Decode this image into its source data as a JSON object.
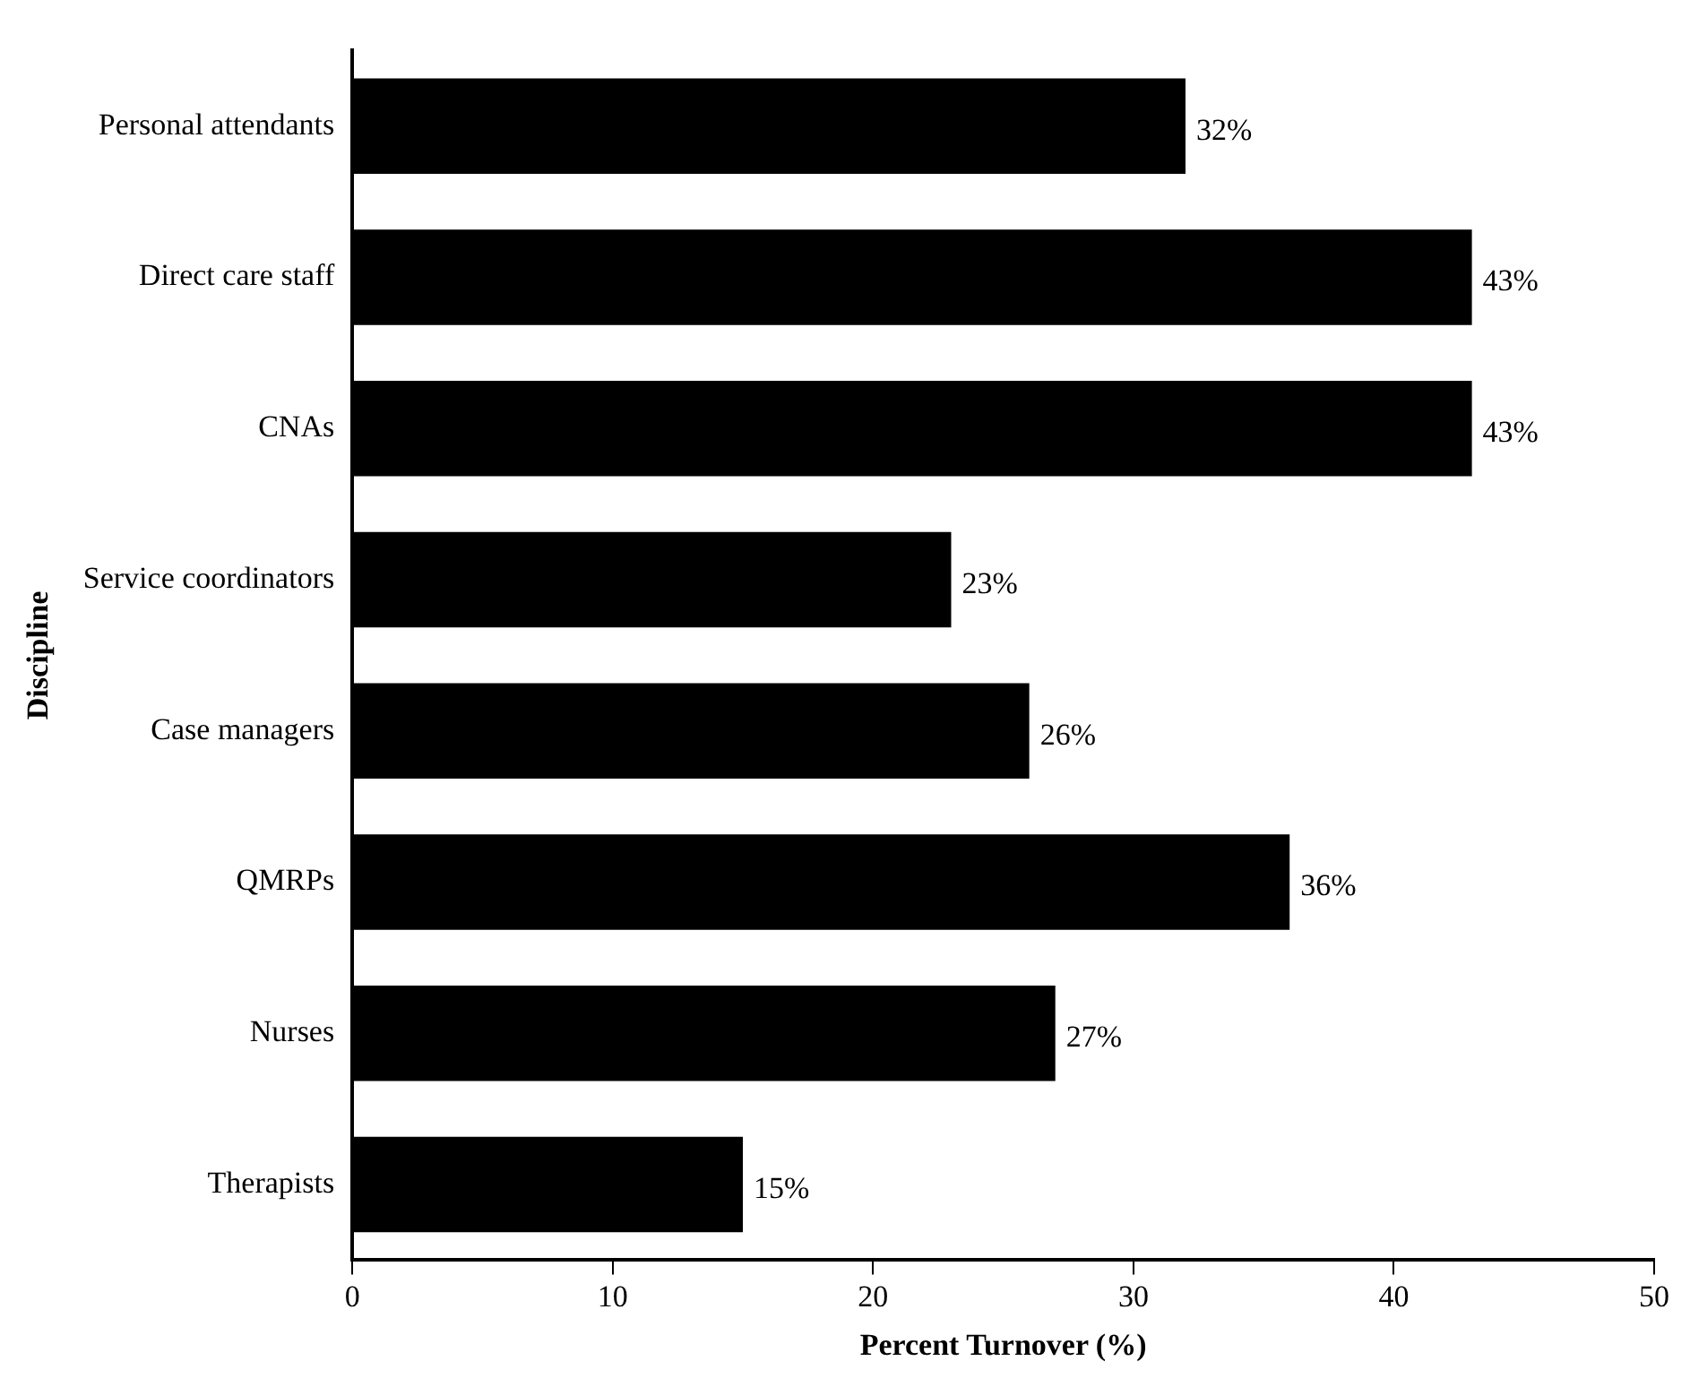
{
  "chart_data": {
    "type": "bar",
    "orientation": "horizontal",
    "xlabel": "Percent Turnover (%)",
    "ylabel": "Discipline",
    "categories": [
      "Personal attendants",
      "Direct care staff",
      "CNAs",
      "Service coordinators",
      "Case managers",
      "QMRPs",
      "Nurses",
      "Therapists"
    ],
    "values": [
      32,
      43,
      43,
      23,
      26,
      36,
      27,
      15
    ],
    "value_labels": [
      "32%",
      "43%",
      "43%",
      "23%",
      "26%",
      "36%",
      "27%",
      "15%"
    ],
    "color": "#000000",
    "xlim": [
      0,
      50
    ],
    "xticks": [
      0,
      10,
      20,
      30,
      40,
      50
    ],
    "grid": false,
    "legend": false
  }
}
